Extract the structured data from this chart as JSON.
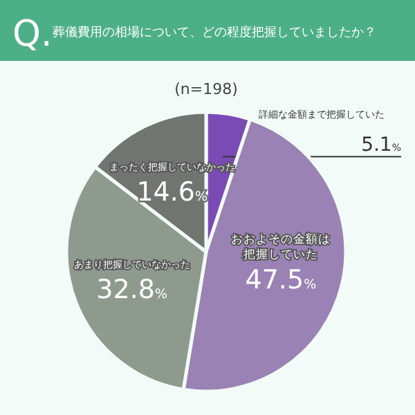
{
  "chart_data": {
    "type": "pie",
    "title": "葬儀費用の相場について、どの程度把握していましたか？",
    "subtitle": "(n=198)",
    "annotations": [
      "Q."
    ],
    "categories": [
      "詳細な金額まで把握していた",
      "おおよその金額は把握していた",
      "あまり把握していなかった",
      "まったく把握していなかった"
    ],
    "values": [
      5.1,
      47.5,
      32.8,
      14.6
    ],
    "colors": [
      "#7b4bb5",
      "#9a82b4",
      "#8f9a8f",
      "#707570"
    ],
    "value_labels": [
      "5.1%",
      "47.5%",
      "32.8%",
      "14.6%"
    ]
  }
}
